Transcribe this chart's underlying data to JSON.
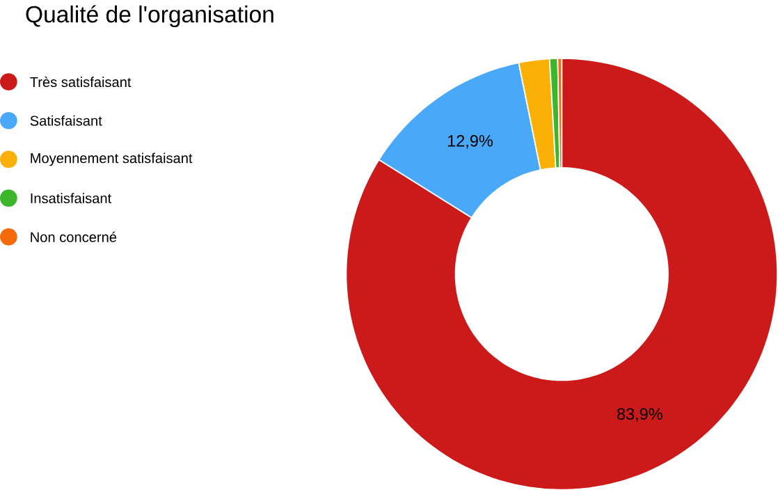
{
  "chart_data": {
    "type": "donut",
    "title": "Qualité de l'organisation",
    "categories": [
      "Très satisfaisant",
      "Satisfaisant",
      "Moyennement satisfaisant",
      "Insatisfaisant",
      "Non concerné"
    ],
    "values": [
      83.9,
      12.9,
      2.3,
      0.6,
      0.3
    ],
    "colors": [
      "#cc1a1a",
      "#4aa8f8",
      "#fbb005",
      "#3cb62a",
      "#f56a0a"
    ],
    "value_labels": [
      "83,9%",
      "12,9%",
      null,
      null,
      null
    ],
    "legend": "top left"
  }
}
